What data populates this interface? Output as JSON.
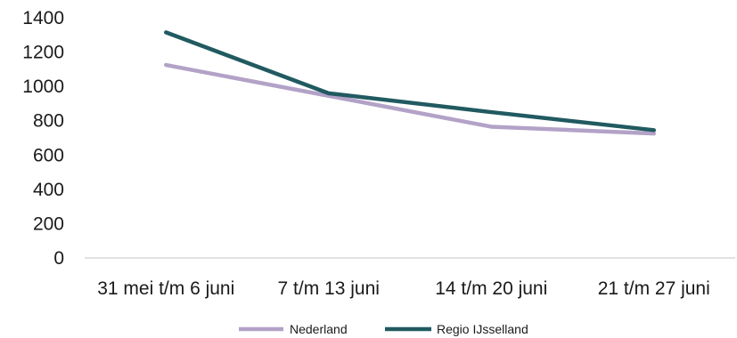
{
  "chart_data": {
    "type": "line",
    "title": "",
    "xlabel": "",
    "ylabel": "",
    "categories": [
      "31 mei t/m 6 juni",
      "7 t/m 13 juni",
      "14 t/m 20 juni",
      "21 t/m 27 juni"
    ],
    "series": [
      {
        "name": "Nederland",
        "values": [
          1125,
          945,
          765,
          725
        ],
        "color": "#b3a2c7"
      },
      {
        "name": "Regio IJsselland",
        "values": [
          1315,
          960,
          850,
          745
        ],
        "color": "#215a61"
      }
    ],
    "ylim": [
      0,
      1400
    ],
    "yticks": [
      0,
      200,
      400,
      600,
      800,
      1000,
      1200,
      1400
    ],
    "grid": false,
    "legend": "bottom-center"
  }
}
